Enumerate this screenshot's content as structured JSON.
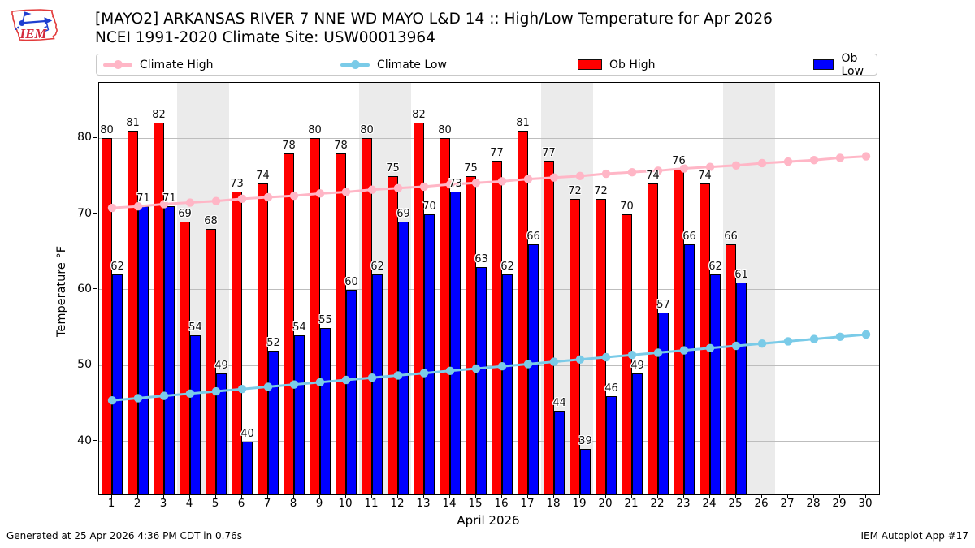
{
  "header": {
    "title_line1": "[MAYO2] ARKANSAS RIVER 7 NNE WD MAYO L&D 14 :: High/Low Temperature for Apr 2026",
    "title_line2": "NCEI 1991-2020 Climate Site: USW00013964",
    "logo_text": "IEM"
  },
  "legend": [
    {
      "label": "Climate High",
      "marker": "line",
      "color": "#ffb6c6"
    },
    {
      "label": "Climate Low",
      "marker": "line",
      "color": "#7acbe8"
    },
    {
      "label": "Ob High",
      "marker": "patch",
      "color": "#ff0000"
    },
    {
      "label": "Ob Low",
      "marker": "patch",
      "color": "#0000ff"
    }
  ],
  "chart_data": {
    "type": "bar",
    "title": "[MAYO2] ARKANSAS RIVER 7 NNE WD MAYO L&D 14 :: High/Low Temperature for Apr 2026",
    "subtitle": "NCEI 1991-2020 Climate Site: USW00013964",
    "xlabel": "April 2026",
    "ylabel": "Temperature °F",
    "x": [
      1,
      2,
      3,
      4,
      5,
      6,
      7,
      8,
      9,
      10,
      11,
      12,
      13,
      14,
      15,
      16,
      17,
      18,
      19,
      20,
      21,
      22,
      23,
      24,
      25,
      26,
      27,
      28,
      29,
      30
    ],
    "yticks": [
      40,
      50,
      60,
      70,
      80
    ],
    "ylim": [
      33.0,
      87.3
    ],
    "grid": true,
    "legend_position": "top",
    "weekend_bands": [
      [
        4,
        5
      ],
      [
        11,
        12
      ],
      [
        18,
        19
      ],
      [
        25,
        26
      ]
    ],
    "band_color": "#ebebeb",
    "gridline_color": "#bdbdbd",
    "series": [
      {
        "name": "Ob High",
        "type": "bar",
        "color": "#ff0000",
        "days": [
          1,
          2,
          3,
          4,
          5,
          6,
          7,
          8,
          9,
          10,
          11,
          12,
          13,
          14,
          15,
          16,
          17,
          18,
          19,
          20,
          21,
          22,
          23,
          24,
          25
        ],
        "values": [
          80,
          81,
          82,
          69,
          68,
          73,
          74,
          78,
          80,
          78,
          80,
          75,
          82,
          80,
          75,
          77,
          81,
          77,
          72,
          72,
          70,
          74,
          76,
          74,
          66
        ]
      },
      {
        "name": "Ob Low",
        "type": "bar",
        "color": "#0000ff",
        "days": [
          1,
          2,
          3,
          4,
          5,
          6,
          7,
          8,
          9,
          10,
          11,
          12,
          13,
          14,
          15,
          16,
          17,
          18,
          19,
          20,
          21,
          22,
          23,
          24,
          25
        ],
        "values": [
          62,
          71,
          71,
          54,
          49,
          40,
          52,
          54,
          55,
          60,
          62,
          69,
          70,
          73,
          63,
          62,
          66,
          44,
          39,
          46,
          49,
          57,
          66,
          62,
          61
        ]
      },
      {
        "name": "Climate High",
        "type": "line",
        "color": "#ffb6c6",
        "values": [
          70.8,
          71.0,
          71.3,
          71.5,
          71.7,
          72.0,
          72.2,
          72.4,
          72.7,
          72.9,
          73.2,
          73.4,
          73.6,
          73.9,
          74.1,
          74.3,
          74.6,
          74.8,
          75.0,
          75.3,
          75.5,
          75.7,
          76.0,
          76.2,
          76.4,
          76.7,
          76.9,
          77.1,
          77.4,
          77.6
        ]
      },
      {
        "name": "Climate Low",
        "type": "line",
        "color": "#7acbe8",
        "values": [
          45.4,
          45.7,
          46.0,
          46.3,
          46.6,
          46.9,
          47.2,
          47.5,
          47.8,
          48.1,
          48.4,
          48.7,
          49.0,
          49.3,
          49.6,
          49.9,
          50.2,
          50.5,
          50.8,
          51.1,
          51.4,
          51.7,
          52.0,
          52.3,
          52.6,
          52.9,
          53.2,
          53.5,
          53.8,
          54.1
        ]
      }
    ]
  },
  "footer": {
    "left": "Generated at 25 Apr 2026 4:36 PM CDT in 0.76s",
    "right": "IEM Autoplot App #17"
  }
}
